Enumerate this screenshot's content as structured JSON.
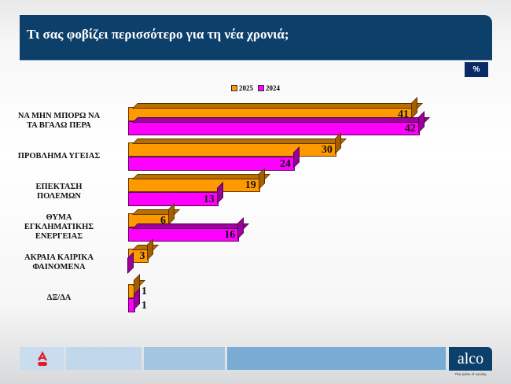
{
  "header": {
    "title": "Τι σας φοβίζει περισσότερο για τη νέα χρονιά;",
    "unit_badge": "%"
  },
  "legend": [
    {
      "label": "2025",
      "color": "#ff9900"
    },
    {
      "label": "2024",
      "color": "#ff00ff"
    }
  ],
  "categories": [
    {
      "label_lines": [
        "ΝΑ ΜΗΝ ΜΠΟΡΩ ΝΑ",
        "ΤΑ ΒΓΑΛΩ ΠΕΡΑ"
      ],
      "v2025": "41",
      "v2024": "42"
    },
    {
      "label_lines": [
        "ΠΡΟΒΛΗΜΑ ΥΓΕΙΑΣ"
      ],
      "v2025": "30",
      "v2024": "24"
    },
    {
      "label_lines": [
        "ΕΠΕΚΤΑΣΗ",
        "ΠΟΛΕΜΩΝ"
      ],
      "v2025": "19",
      "v2024": "13"
    },
    {
      "label_lines": [
        "ΘΥΜΑ",
        "ΕΓΚΛΗΜΑΤΙΚΗΣ",
        "ΕΝΕΡΓΕΙΑΣ"
      ],
      "v2025": "6",
      "v2024": "16"
    },
    {
      "label_lines": [
        "ΑΚΡΑΙΑ ΚΑΙΡΙΚΑ",
        "ΦΑΙΝΟΜΕΝΑ"
      ],
      "v2025": "3",
      "v2024": ""
    },
    {
      "label_lines": [
        "ΔΞ/ΔΑ"
      ],
      "v2025": "1",
      "v2024": "1"
    }
  ],
  "footer": {
    "left_logo": "alpha-logo",
    "brand": "alco",
    "tagline": "The pulse of society"
  },
  "chart_data": {
    "type": "bar",
    "orientation": "horizontal",
    "title": "Τι σας φοβίζει περισσότερο για τη νέα χρονιά;",
    "unit": "%",
    "categories": [
      "ΝΑ ΜΗΝ ΜΠΟΡΩ ΝΑ ΤΑ ΒΓΑΛΩ ΠΕΡΑ",
      "ΠΡΟΒΛΗΜΑ ΥΓΕΙΑΣ",
      "ΕΠΕΚΤΑΣΗ ΠΟΛΕΜΩΝ",
      "ΘΥΜΑ ΕΓΚΛΗΜΑΤΙΚΗΣ ΕΝΕΡΓΕΙΑΣ",
      "ΑΚΡΑΙΑ ΚΑΙΡΙΚΑ ΦΑΙΝΟΜΕΝΑ",
      "ΔΞ/ΔΑ"
    ],
    "series": [
      {
        "name": "2025",
        "color": "#ff9900",
        "values": [
          41,
          30,
          19,
          6,
          3,
          1
        ]
      },
      {
        "name": "2024",
        "color": "#ff00ff",
        "values": [
          42,
          24,
          13,
          16,
          0,
          1
        ]
      }
    ],
    "xlabel": "",
    "ylabel": "",
    "grid": false,
    "legend_position": "top",
    "style": "3d-bars-with-data-labels"
  }
}
